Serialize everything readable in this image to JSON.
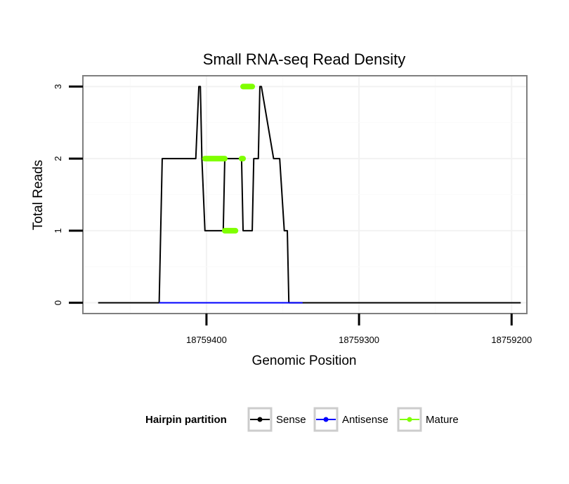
{
  "chart_data": {
    "type": "line",
    "title": "Small RNA-seq Read Density",
    "xlabel": "Genomic Position",
    "ylabel": "Total Reads",
    "xlim": [
      18759481,
      18759190
    ],
    "ylim": [
      -0.15,
      3.15
    ],
    "x_reversed": true,
    "grid": true,
    "x_ticks": [
      18759400,
      18759300,
      18759200
    ],
    "x_tick_labels": [
      "18759400",
      "18759300",
      "18759200"
    ],
    "y_ticks": [
      0,
      1,
      2,
      3
    ],
    "y_tick_labels": [
      "0",
      "1",
      "2",
      "3"
    ],
    "legend": {
      "title": "Hairpin partition",
      "position": "bottom",
      "entries": [
        {
          "name": "Sense",
          "color": "#000000"
        },
        {
          "name": "Antisense",
          "color": "#0000ff"
        },
        {
          "name": "Mature",
          "color": "#7fff00"
        }
      ]
    },
    "series": [
      {
        "name": "Sense",
        "color": "#000000",
        "x": [
          18759471,
          18759431,
          18759429,
          18759407,
          18759405,
          18759404,
          18759403,
          18759401,
          18759389,
          18759388,
          18759377,
          18759376,
          18759374,
          18759373,
          18759370,
          18759369,
          18759366,
          18759365,
          18759364,
          18759356,
          18759353,
          18759352,
          18759349,
          18759347,
          18759346,
          18759338,
          18759337,
          18759194
        ],
        "y": [
          0,
          0,
          2,
          2,
          3,
          3,
          2,
          1,
          1,
          2,
          2,
          1,
          1,
          1,
          1,
          2,
          2,
          3,
          3,
          2,
          2,
          2,
          1,
          1,
          0,
          0,
          0,
          0
        ]
      },
      {
        "name": "Antisense",
        "color": "#0000ff",
        "x": [
          18759431,
          18759337
        ],
        "y": [
          0,
          0
        ]
      },
      {
        "name": "Mature",
        "color": "#7fff00",
        "segments": [
          {
            "x": [
              18759401,
              18759388
            ],
            "y": [
              2,
              2
            ]
          },
          {
            "x": [
              18759388,
              18759381
            ],
            "y": [
              1,
              1
            ]
          },
          {
            "x": [
              18759377,
              18759376
            ],
            "y": [
              2,
              2
            ]
          },
          {
            "x": [
              18759376,
              18759370
            ],
            "y": [
              3,
              3
            ]
          }
        ]
      }
    ]
  }
}
